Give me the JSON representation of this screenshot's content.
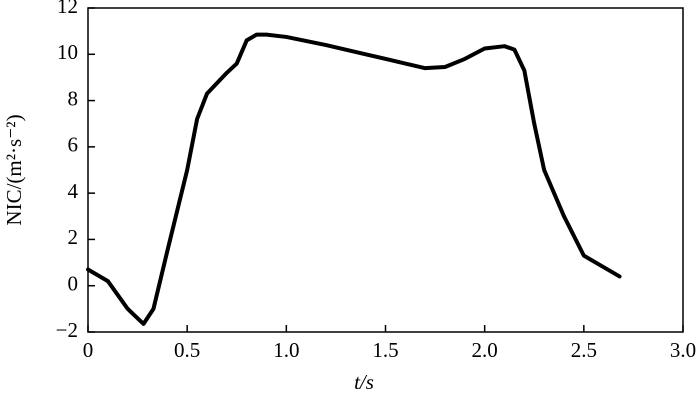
{
  "chart_data": {
    "type": "line",
    "x_label": "t/s",
    "y_label": "NIC/(m²·s⁻²)",
    "x": [
      0,
      0.1,
      0.2,
      0.28,
      0.33,
      0.4,
      0.5,
      0.55,
      0.6,
      0.7,
      0.75,
      0.8,
      0.85,
      0.9,
      1.0,
      1.2,
      1.4,
      1.6,
      1.7,
      1.8,
      1.9,
      2.0,
      2.1,
      2.15,
      2.2,
      2.25,
      2.3,
      2.4,
      2.5,
      2.6,
      2.68
    ],
    "series": [
      {
        "color": "#000000",
        "values": [
          0.7,
          0.2,
          -1.0,
          -1.65,
          -1.0,
          1.5,
          5.0,
          7.2,
          8.3,
          9.2,
          9.6,
          10.6,
          10.85,
          10.85,
          10.75,
          10.4,
          10.0,
          9.6,
          9.4,
          9.45,
          9.8,
          10.25,
          10.35,
          10.2,
          9.3,
          7.0,
          5.0,
          3.0,
          1.3,
          0.8,
          0.4
        ]
      }
    ],
    "xlim": [
      0,
      3
    ],
    "ylim": [
      -2,
      12
    ],
    "xticks": [
      0,
      0.5,
      {
        "value": 1,
        "label": "1.0"
      },
      1.5,
      {
        "value": 2,
        "label": "2.0"
      },
      2.5,
      {
        "value": 3,
        "label": "3.0"
      }
    ],
    "yticks": [
      {
        "value": -2,
        "label": "−2"
      },
      0,
      2,
      4,
      6,
      8,
      10,
      12
    ]
  }
}
